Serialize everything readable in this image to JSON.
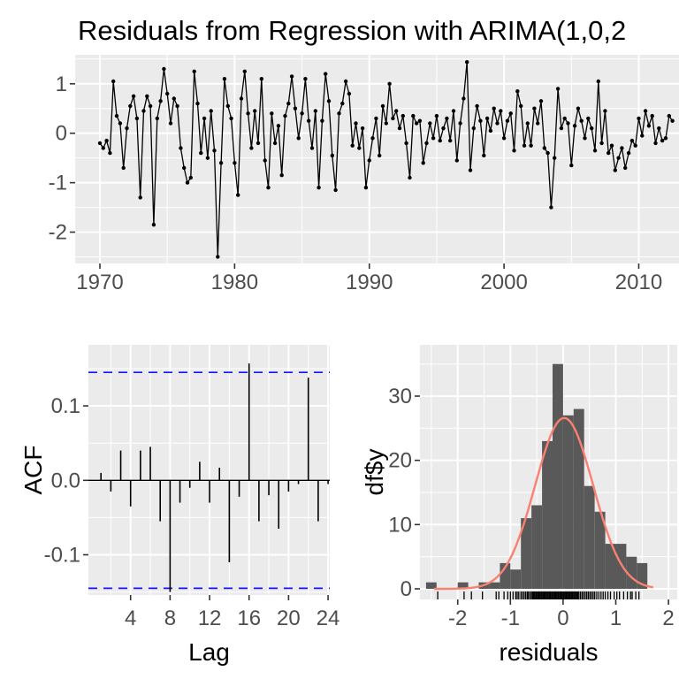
{
  "title": "Residuals from Regression with ARIMA(1,0,2",
  "colors": {
    "panel_bg": "#EBEBEB",
    "grid": "#FFFFFF",
    "series": "#000000",
    "hist_fill": "#595959",
    "curve": "#FA8072",
    "conf_line": "#1414FF",
    "tick_text": "#4D4D4D",
    "axis_title_text": "#000000",
    "tick_mark": "#333333"
  },
  "chart_data": [
    {
      "id": "residual-time-series",
      "type": "line",
      "xlabel": "",
      "ylabel": "",
      "x_start": 1970,
      "x_step": 0.25,
      "xlim": [
        1968.2,
        2013.0
      ],
      "ylim": [
        -2.67,
        1.59
      ],
      "xticks": [
        {
          "v": 1970,
          "label": "1970"
        },
        {
          "v": 1980,
          "label": "1980"
        },
        {
          "v": 1990,
          "label": "1990"
        },
        {
          "v": 2000,
          "label": "2000"
        },
        {
          "v": 2010,
          "label": "2010"
        }
      ],
      "yticks": [
        {
          "v": 1,
          "label": "1"
        },
        {
          "v": 0,
          "label": "0"
        },
        {
          "v": -1,
          "label": "-1"
        },
        {
          "v": -2,
          "label": "-2"
        }
      ],
      "values": [
        -0.2,
        -0.3,
        -0.15,
        -0.4,
        1.05,
        0.35,
        0.2,
        -0.7,
        0.1,
        0.55,
        0.75,
        0.3,
        -1.3,
        0.45,
        0.75,
        0.55,
        -1.85,
        0.3,
        0.65,
        1.3,
        0.8,
        0.2,
        0.7,
        0.55,
        -0.3,
        -0.7,
        -1.0,
        -0.9,
        1.25,
        0.6,
        -0.4,
        0.3,
        -0.5,
        0.45,
        -0.35,
        -2.5,
        -0.6,
        1.1,
        0.55,
        0.3,
        -0.6,
        -1.25,
        0.7,
        1.25,
        0.4,
        -0.3,
        0.45,
        -0.2,
        1.1,
        -0.55,
        -1.1,
        0.4,
        -0.2,
        0.15,
        -0.85,
        0.35,
        0.6,
        1.15,
        0.5,
        -0.1,
        0.4,
        1.1,
        0.25,
        -0.3,
        0.45,
        -1.1,
        0.25,
        1.2,
        0.65,
        -0.45,
        -1.15,
        0.4,
        0.6,
        1.05,
        0.8,
        -0.25,
        0.2,
        -0.3,
        0.1,
        -1.1,
        -0.55,
        -0.1,
        0.3,
        -0.45,
        0.55,
        0.2,
        1.0,
        0.3,
        0.45,
        0.1,
        0.35,
        -0.2,
        -0.9,
        0.35,
        0.2,
        0.25,
        -0.6,
        -0.2,
        0.2,
        -0.1,
        0.35,
        -0.15,
        0.1,
        0.3,
        -0.15,
        0.45,
        -0.55,
        0.2,
        0.7,
        1.44,
        -0.75,
        0.1,
        0.55,
        0.25,
        -0.45,
        0.3,
        0.05,
        0.5,
        0.2,
        0.45,
        -0.1,
        0.25,
        0.4,
        -0.35,
        0.85,
        0.55,
        -0.25,
        0.2,
        -0.25,
        0.5,
        0.2,
        0.65,
        -0.3,
        -0.4,
        -1.5,
        -0.5,
        0.9,
        0.1,
        0.3,
        0.2,
        -0.65,
        0.15,
        0.5,
        0.25,
        -0.1,
        0.3,
        0.1,
        -0.35,
        1.05,
        -0.2,
        0.45,
        -0.4,
        -0.25,
        -0.75,
        -0.5,
        -0.3,
        -0.7,
        -0.4,
        -0.15,
        -0.25,
        0.3,
        -0.05,
        0.45,
        0.15,
        0.35,
        -0.2,
        0.1,
        -0.15,
        -0.1,
        0.35,
        0.25
      ]
    },
    {
      "id": "acf",
      "type": "bar",
      "xlabel": "Lag",
      "ylabel": "ACF",
      "conf_bound": 0.145,
      "xticks": [
        {
          "v": 4,
          "label": "4"
        },
        {
          "v": 8,
          "label": "8"
        },
        {
          "v": 12,
          "label": "12"
        },
        {
          "v": 16,
          "label": "16"
        },
        {
          "v": 20,
          "label": "20"
        },
        {
          "v": 24,
          "label": "24"
        }
      ],
      "yticks": [
        {
          "v": 0.1,
          "label": "0.1"
        },
        {
          "v": 0,
          "label": "0.0"
        },
        {
          "v": -0.1,
          "label": "-0.1"
        }
      ],
      "lags": [
        1,
        2,
        3,
        4,
        5,
        6,
        7,
        8,
        9,
        10,
        11,
        12,
        13,
        14,
        15,
        16,
        17,
        18,
        19,
        20,
        21,
        22,
        23,
        24
      ],
      "values": [
        0.01,
        -0.015,
        0.04,
        -0.035,
        0.04,
        0.045,
        -0.055,
        -0.15,
        -0.03,
        -0.01,
        0.025,
        -0.03,
        0.017,
        -0.11,
        -0.022,
        0.157,
        -0.055,
        -0.02,
        -0.065,
        -0.015,
        -0.005,
        0.138,
        -0.055,
        -0.005
      ]
    },
    {
      "id": "residual-histogram",
      "type": "histogram",
      "xlabel": "residuals",
      "ylabel": "df$y",
      "bin_start": -2.6,
      "bin_width": 0.2,
      "counts": [
        1,
        0,
        0,
        1,
        0,
        1,
        1,
        4,
        3,
        11,
        13,
        23,
        35,
        27,
        28,
        16,
        12,
        7,
        7,
        5,
        4
      ],
      "xticks": [
        {
          "v": -2,
          "label": "-2"
        },
        {
          "v": -1,
          "label": "-1"
        },
        {
          "v": 0,
          "label": "0"
        },
        {
          "v": 1,
          "label": "1"
        },
        {
          "v": 2,
          "label": "2"
        }
      ],
      "yticks": [
        {
          "v": 0,
          "label": "0"
        },
        {
          "v": 10,
          "label": "10"
        },
        {
          "v": 20,
          "label": "20"
        },
        {
          "v": 30,
          "label": "30"
        }
      ],
      "normal_curve": {
        "mean": 0.02,
        "sd": 0.55,
        "peak": 26.6,
        "x_from": -2.45,
        "x_to": 1.72
      },
      "rug": [
        -2.38,
        -1.88,
        -1.74,
        -1.53,
        -1.27,
        -1.22,
        -1.12,
        -1.05,
        -1.0,
        -0.95,
        -0.9,
        -0.87,
        -0.84,
        -0.8,
        -0.77,
        -0.74,
        -0.71,
        -0.68,
        -0.66,
        -0.63,
        -0.6,
        -0.58,
        -0.56,
        -0.54,
        -0.52,
        -0.5,
        -0.48,
        -0.46,
        -0.44,
        -0.42,
        -0.4,
        -0.38,
        -0.36,
        -0.34,
        -0.32,
        -0.3,
        -0.28,
        -0.26,
        -0.24,
        -0.22,
        -0.2,
        -0.18,
        -0.16,
        -0.14,
        -0.12,
        -0.1,
        -0.08,
        -0.06,
        -0.04,
        -0.02,
        0.0,
        0.02,
        0.04,
        0.06,
        0.08,
        0.1,
        0.12,
        0.14,
        0.16,
        0.18,
        0.2,
        0.22,
        0.24,
        0.26,
        0.28,
        0.3,
        0.33,
        0.36,
        0.39,
        0.42,
        0.45,
        0.48,
        0.51,
        0.54,
        0.57,
        0.6,
        0.64,
        0.68,
        0.72,
        0.76,
        0.8,
        0.85,
        0.9,
        0.97,
        1.02,
        1.07,
        1.15,
        1.22,
        1.28,
        1.31,
        1.38,
        1.44
      ]
    }
  ]
}
